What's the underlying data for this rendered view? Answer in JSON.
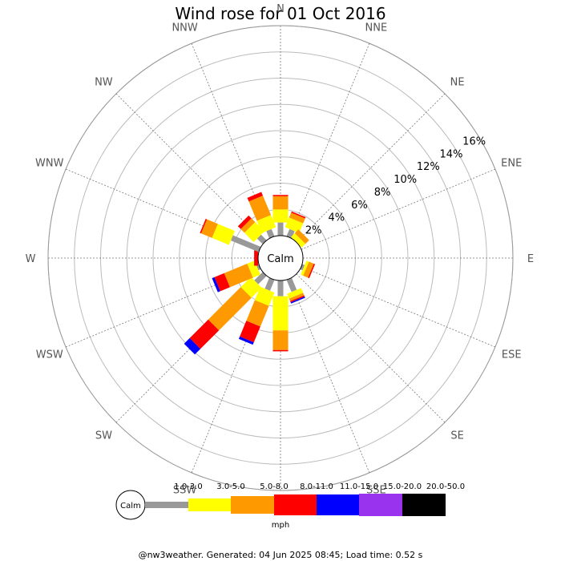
{
  "chart_data": {
    "type": "wind-rose",
    "title": "Wind rose for 01 Oct 2016",
    "calm_label": "Calm",
    "unit": "mph",
    "directions": [
      "N",
      "NNE",
      "NE",
      "ENE",
      "E",
      "ESE",
      "SE",
      "SSE",
      "S",
      "SSW",
      "SW",
      "WSW",
      "W",
      "WNW",
      "NW",
      "NNW"
    ],
    "radial_ticks": [
      2,
      4,
      6,
      8,
      10,
      12,
      14,
      16
    ],
    "radial_tick_labels": [
      "2%",
      "4%",
      "6%",
      "8%",
      "10%",
      "12%",
      "14%",
      "16%"
    ],
    "rmax_percent": 16,
    "speed_bins": [
      {
        "label": "1.0-3.0",
        "color": "#999999"
      },
      {
        "label": "3.0-5.0",
        "color": "#ffff00"
      },
      {
        "label": "5.0-8.0",
        "color": "#ff9900"
      },
      {
        "label": "8.0-11.0",
        "color": "#ff0000"
      },
      {
        "label": "11.0-15.0",
        "color": "#0000ff"
      },
      {
        "label": "15.0-20.0",
        "color": "#9933ee"
      },
      {
        "label": "20.0-50.0",
        "color": "#000000"
      }
    ],
    "series_cumulative": [
      [
        1.0,
        2.0,
        3.0,
        3.1,
        3.1,
        3.1,
        3.1
      ],
      [
        0.6,
        1.4,
        1.8,
        1.9,
        1.9,
        1.9,
        1.9
      ],
      [
        0.0,
        0.4,
        0.8,
        0.8,
        0.8,
        0.8,
        0.8
      ],
      [
        0.0,
        0.0,
        0.0,
        0.0,
        0.0,
        0.0,
        0.0
      ],
      [
        0.0,
        0.0,
        0.0,
        0.0,
        0.0,
        0.0,
        0.0
      ],
      [
        0.2,
        0.4,
        0.8,
        0.9,
        0.9,
        0.9,
        0.9
      ],
      [
        0.0,
        0.0,
        0.0,
        0.0,
        0.0,
        0.0,
        0.0
      ],
      [
        1.0,
        1.4,
        1.6,
        1.7,
        1.8,
        1.8,
        1.8
      ],
      [
        1.2,
        3.8,
        5.3,
        5.4,
        5.4,
        5.4,
        5.4
      ],
      [
        0.9,
        2.0,
        3.7,
        5.0,
        5.2,
        5.2,
        5.2
      ],
      [
        0.9,
        2.0,
        5.5,
        7.5,
        8.1,
        8.1,
        8.1
      ],
      [
        0.2,
        0.8,
        2.7,
        3.5,
        3.7,
        3.7,
        3.7
      ],
      [
        0.0,
        0.0,
        0.0,
        0.3,
        0.3,
        0.3,
        0.3
      ],
      [
        2.3,
        3.7,
        4.6,
        4.7,
        4.7,
        4.7,
        4.7
      ],
      [
        0.6,
        1.6,
        2.0,
        2.3,
        2.3,
        2.3,
        2.3
      ],
      [
        0.6,
        1.6,
        3.2,
        3.5,
        3.5,
        3.5,
        3.5
      ]
    ]
  },
  "footer": "@nw3weather. Generated: 04 Jun 2025 08:45; Load time: 0.52 s"
}
